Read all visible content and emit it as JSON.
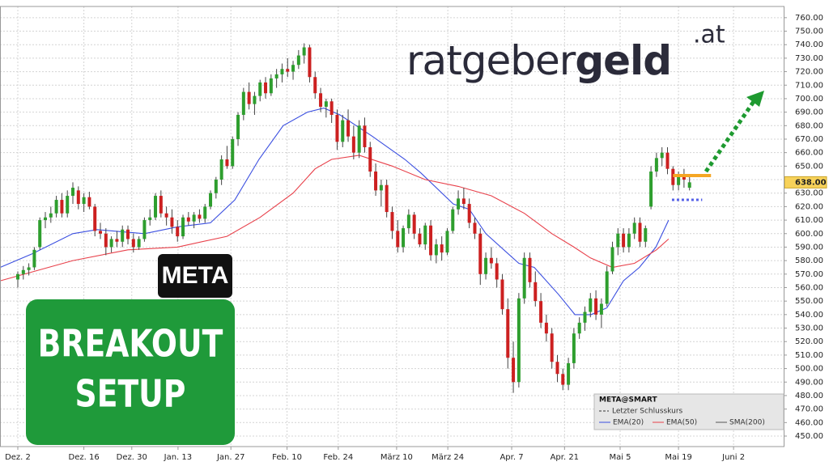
{
  "chart_data": {
    "type": "candlestick",
    "ticker_label": "META",
    "badge_lines": [
      "BREAKOUT",
      "SETUP"
    ],
    "brand": {
      "main": "ratgeber",
      "bold": "geld",
      "suffix": ".at"
    },
    "xlim": [
      -3.235,
      139.1
    ],
    "ylim": [
      442.2,
      768.3
    ],
    "xticks": [
      {
        "value": 0,
        "label": "Dez. 2"
      },
      {
        "value": 12,
        "label": "Dez. 16"
      },
      {
        "value": 20.7,
        "label": "Dez. 30"
      },
      {
        "value": 29.1,
        "label": "Jan. 13"
      },
      {
        "value": 38.7,
        "label": "Jan. 27"
      },
      {
        "value": 48.9,
        "label": "Feb. 10"
      },
      {
        "value": 58.2,
        "label": "Feb. 24"
      },
      {
        "value": 68.8,
        "label": "März 10"
      },
      {
        "value": 78.1,
        "label": "März 24"
      },
      {
        "value": 89.7,
        "label": "Apr. 7"
      },
      {
        "value": 99.3,
        "label": "Apr. 21"
      },
      {
        "value": 109.4,
        "label": "Mai 5"
      },
      {
        "value": 120,
        "label": "Mai 19"
      },
      {
        "value": 130,
        "label": "Juni 2"
      }
    ],
    "yticks": [
      {
        "value": 450,
        "label": "450.00"
      },
      {
        "value": 460,
        "label": "460.00"
      },
      {
        "value": 470,
        "label": "470.00"
      },
      {
        "value": 480,
        "label": "480.00"
      },
      {
        "value": 490,
        "label": "490.00"
      },
      {
        "value": 500,
        "label": "500.00"
      },
      {
        "value": 510,
        "label": "510.00"
      },
      {
        "value": 520,
        "label": "520.00"
      },
      {
        "value": 530,
        "label": "530.00"
      },
      {
        "value": 540,
        "label": "540.00"
      },
      {
        "value": 550,
        "label": "550.00"
      },
      {
        "value": 560,
        "label": "560.00"
      },
      {
        "value": 570,
        "label": "570.00"
      },
      {
        "value": 580,
        "label": "580.00"
      },
      {
        "value": 590,
        "label": "590.00"
      },
      {
        "value": 600,
        "label": "600.00"
      },
      {
        "value": 610,
        "label": "610.00"
      },
      {
        "value": 620,
        "label": "620.00"
      },
      {
        "value": 630,
        "label": "630.00"
      },
      {
        "value": 640,
        "label": "640.00"
      },
      {
        "value": 650,
        "label": "650.00"
      },
      {
        "value": 660,
        "label": "660.00"
      },
      {
        "value": 670,
        "label": "670.00"
      },
      {
        "value": 680,
        "label": "680.00"
      },
      {
        "value": 690,
        "label": "690.00"
      },
      {
        "value": 700,
        "label": "700.00"
      },
      {
        "value": 710,
        "label": "710.00"
      },
      {
        "value": 720,
        "label": "720.00"
      },
      {
        "value": 730,
        "label": "730.00"
      },
      {
        "value": 740,
        "label": "740.00"
      },
      {
        "value": 750,
        "label": "750.00"
      },
      {
        "value": 760,
        "label": "760.00"
      }
    ],
    "grid": true,
    "up_color": "#2e9e2e",
    "down_color": "#cc2020",
    "last_price": {
      "value": 638,
      "label": "638.00"
    },
    "resistance": 643,
    "support": 625,
    "candles": [
      [
        566,
        572,
        560,
        570
      ],
      [
        570,
        576,
        566,
        573
      ],
      [
        573,
        578,
        569,
        575
      ],
      [
        575,
        590,
        573,
        588
      ],
      [
        590,
        612,
        588,
        610
      ],
      [
        610,
        616,
        604,
        612
      ],
      [
        612,
        620,
        608,
        615
      ],
      [
        615,
        628,
        612,
        625
      ],
      [
        625,
        630,
        612,
        615
      ],
      [
        615,
        632,
        612,
        628
      ],
      [
        628,
        638,
        622,
        634
      ],
      [
        632,
        635,
        618,
        622
      ],
      [
        622,
        630,
        616,
        627
      ],
      [
        627,
        631,
        618,
        620
      ],
      [
        620,
        622,
        598,
        602
      ],
      [
        602,
        608,
        596,
        600
      ],
      [
        600,
        604,
        584,
        590
      ],
      [
        590,
        598,
        586,
        596
      ],
      [
        596,
        602,
        590,
        594
      ],
      [
        594,
        606,
        590,
        603
      ],
      [
        603,
        606,
        592,
        596
      ],
      [
        596,
        600,
        586,
        590
      ],
      [
        590,
        598,
        588,
        596
      ],
      [
        596,
        612,
        594,
        610
      ],
      [
        610,
        618,
        606,
        612
      ],
      [
        612,
        630,
        610,
        628
      ],
      [
        628,
        632,
        612,
        615
      ],
      [
        615,
        620,
        606,
        612
      ],
      [
        612,
        618,
        600,
        605
      ],
      [
        605,
        610,
        594,
        598
      ],
      [
        598,
        614,
        596,
        612
      ],
      [
        612,
        616,
        606,
        609
      ],
      [
        609,
        616,
        604,
        614
      ],
      [
        614,
        618,
        608,
        611
      ],
      [
        611,
        622,
        608,
        620
      ],
      [
        620,
        632,
        618,
        630
      ],
      [
        630,
        642,
        626,
        640
      ],
      [
        640,
        658,
        636,
        655
      ],
      [
        655,
        665,
        648,
        650
      ],
      [
        650,
        672,
        648,
        670
      ],
      [
        670,
        690,
        665,
        688
      ],
      [
        688,
        708,
        684,
        705
      ],
      [
        705,
        712,
        692,
        696
      ],
      [
        696,
        705,
        688,
        702
      ],
      [
        702,
        714,
        698,
        712
      ],
      [
        712,
        716,
        700,
        704
      ],
      [
        704,
        718,
        702,
        715
      ],
      [
        715,
        722,
        708,
        718
      ],
      [
        718,
        726,
        712,
        722
      ],
      [
        722,
        730,
        716,
        720
      ],
      [
        720,
        728,
        714,
        725
      ],
      [
        725,
        736,
        722,
        732
      ],
      [
        732,
        741,
        726,
        738
      ],
      [
        738,
        740,
        712,
        716
      ],
      [
        716,
        720,
        700,
        704
      ],
      [
        704,
        708,
        690,
        694
      ],
      [
        694,
        700,
        686,
        698
      ],
      [
        698,
        700,
        682,
        688
      ],
      [
        688,
        692,
        662,
        668
      ],
      [
        668,
        688,
        664,
        684
      ],
      [
        684,
        692,
        668,
        672
      ],
      [
        672,
        680,
        655,
        660
      ],
      [
        660,
        684,
        656,
        680
      ],
      [
        680,
        686,
        660,
        664
      ],
      [
        664,
        668,
        642,
        646
      ],
      [
        646,
        652,
        628,
        632
      ],
      [
        632,
        640,
        620,
        636
      ],
      [
        636,
        640,
        612,
        616
      ],
      [
        616,
        620,
        596,
        602
      ],
      [
        602,
        610,
        586,
        590
      ],
      [
        590,
        606,
        586,
        604
      ],
      [
        604,
        618,
        600,
        614
      ],
      [
        614,
        616,
        596,
        600
      ],
      [
        600,
        604,
        590,
        592
      ],
      [
        592,
        608,
        588,
        606
      ],
      [
        606,
        610,
        580,
        584
      ],
      [
        584,
        596,
        578,
        592
      ],
      [
        592,
        598,
        580,
        586
      ],
      [
        586,
        604,
        584,
        602
      ],
      [
        602,
        620,
        600,
        618
      ],
      [
        618,
        632,
        614,
        626
      ],
      [
        626,
        634,
        618,
        622
      ],
      [
        622,
        626,
        604,
        608
      ],
      [
        608,
        612,
        596,
        600
      ],
      [
        600,
        604,
        562,
        570
      ],
      [
        570,
        586,
        566,
        582
      ],
      [
        582,
        590,
        574,
        578
      ],
      [
        578,
        582,
        560,
        566
      ],
      [
        566,
        570,
        540,
        544
      ],
      [
        544,
        552,
        500,
        508
      ],
      [
        508,
        520,
        482,
        490
      ],
      [
        490,
        556,
        486,
        552
      ],
      [
        552,
        586,
        548,
        582
      ],
      [
        582,
        586,
        560,
        564
      ],
      [
        564,
        572,
        546,
        550
      ],
      [
        550,
        556,
        530,
        534
      ],
      [
        534,
        540,
        520,
        526
      ],
      [
        526,
        530,
        500,
        505
      ],
      [
        505,
        510,
        490,
        496
      ],
      [
        496,
        500,
        484,
        488
      ],
      [
        488,
        508,
        484,
        504
      ],
      [
        504,
        530,
        500,
        526
      ],
      [
        526,
        538,
        522,
        534
      ],
      [
        534,
        546,
        528,
        542
      ],
      [
        542,
        556,
        538,
        552
      ],
      [
        552,
        558,
        536,
        540
      ],
      [
        540,
        552,
        530,
        548
      ],
      [
        548,
        576,
        546,
        572
      ],
      [
        572,
        594,
        570,
        590
      ],
      [
        590,
        604,
        584,
        600
      ],
      [
        600,
        604,
        586,
        590
      ],
      [
        590,
        604,
        586,
        600
      ],
      [
        600,
        612,
        596,
        608
      ],
      [
        608,
        612,
        590,
        594
      ],
      [
        594,
        606,
        590,
        604
      ],
      [
        620,
        650,
        618,
        646
      ],
      [
        646,
        660,
        642,
        656
      ],
      [
        656,
        664,
        650,
        660
      ],
      [
        660,
        664,
        644,
        648
      ],
      [
        648,
        650,
        632,
        636
      ],
      [
        636,
        646,
        632,
        644
      ],
      [
        644,
        648,
        634,
        640
      ],
      [
        634,
        642,
        632,
        638
      ]
    ],
    "series": [
      {
        "name": "EMA(20)",
        "color": "#3b4fe0",
        "x": [
          -3.2,
          2.6,
          10,
          14.4,
          23,
          29,
          35,
          39.4,
          43.8,
          48.2,
          52.6,
          55.6,
          58.5,
          64.4,
          70.3,
          73.2,
          79.1,
          82,
          85,
          91,
          93.8,
          98.2,
          101.2,
          104.1,
          107,
          110,
          112.9,
          115.9,
          118.2
        ],
        "values": [
          575,
          585,
          600,
          603,
          600,
          605,
          608,
          625,
          655,
          680,
          690,
          693,
          688,
          672,
          655,
          645,
          622,
          618,
          600,
          578,
          575,
          555,
          540,
          540,
          545,
          565,
          575,
          590,
          610
        ]
      },
      {
        "name": "EMA(50)",
        "color": "#e8404a",
        "x": [
          -3.2,
          10,
          20,
          29,
          38,
          44,
          50,
          54,
          57,
          62,
          68,
          74,
          80,
          86,
          92,
          97,
          101,
          104,
          108,
          112,
          116,
          118.2
        ],
        "values": [
          565,
          580,
          588,
          590,
          598,
          612,
          630,
          648,
          655,
          658,
          650,
          640,
          635,
          628,
          615,
          600,
          590,
          582,
          575,
          578,
          588,
          596
        ]
      }
    ],
    "legend": {
      "title": "META@SMART",
      "close_label": "Letzter Schlusskurs",
      "sma_label": "SMA(200)"
    }
  }
}
